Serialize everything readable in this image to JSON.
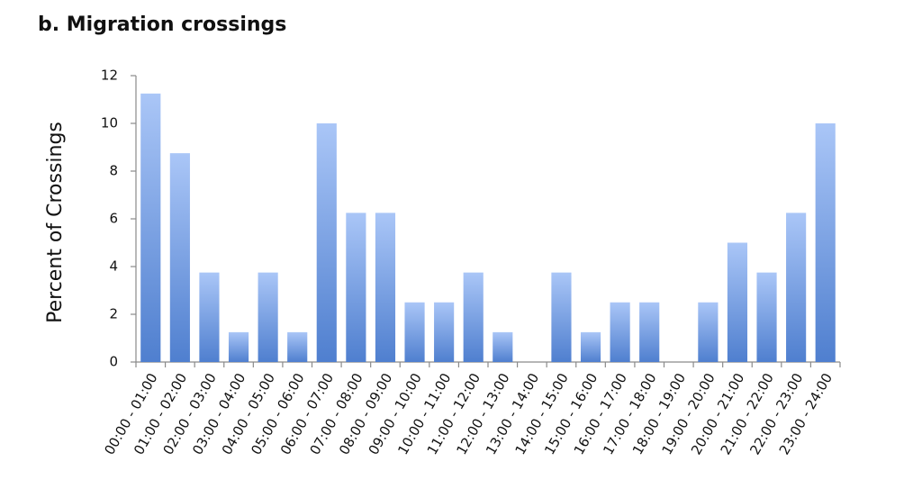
{
  "chart_data": {
    "type": "bar",
    "title": "b. Migration crossings",
    "y_label": "Percent of Crossings",
    "categories": [
      "00:00 - 01:00",
      "01:00 - 02:00",
      "02:00 - 03:00",
      "03:00 - 04:00",
      "04:00 - 05:00",
      "05:00 - 06:00",
      "06:00 - 07:00",
      "07:00 - 08:00",
      "08:00 - 09:00",
      "09:00 - 10:00",
      "10:00 - 11:00",
      "11:00 - 12:00",
      "12:00 - 13:00",
      "13:00 - 14:00",
      "14:00 - 15:00",
      "15:00 - 16:00",
      "16:00 - 17:00",
      "17:00 - 18:00",
      "18:00 - 19:00",
      "19:00 - 20:00",
      "20:00 - 21:00",
      "21:00 - 22:00",
      "22:00 - 23:00",
      "23:00 - 24:00"
    ],
    "values": [
      11.25,
      8.75,
      3.75,
      1.25,
      3.75,
      1.25,
      10,
      6.25,
      6.25,
      2.5,
      2.5,
      3.75,
      1.25,
      0,
      3.75,
      1.25,
      2.5,
      2.5,
      0,
      2.5,
      5,
      3.75,
      6.25,
      10
    ],
    "color": "#4f7fcf",
    "ylim": [
      0,
      12
    ],
    "yticks": [
      0,
      2,
      4,
      6,
      8,
      10,
      12
    ],
    "grid": false
  }
}
